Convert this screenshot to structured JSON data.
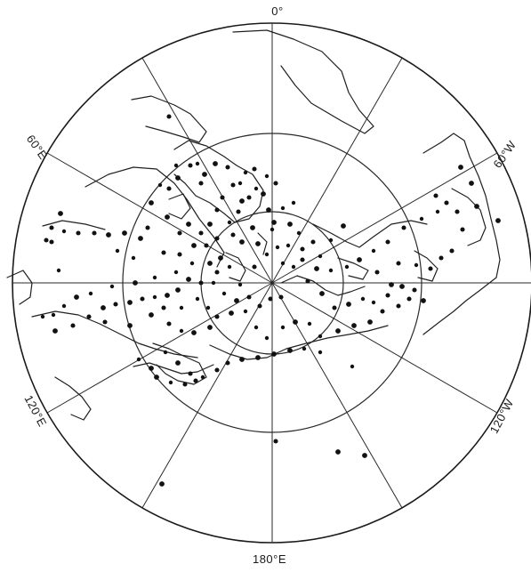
{
  "map": {
    "projection": "north polar stereographic",
    "center": "North Pole",
    "meridian_labels": {
      "lon_0": "0°",
      "lon_60w": "60°W",
      "lon_120w": "120°W",
      "lon_180": "180°E",
      "lon_120e": "120°E",
      "lon_60e": "60°E"
    },
    "meridian_line_interval_deg": 30,
    "latitude_circles": 3,
    "marker": "filled-circle",
    "colors": {
      "background": "#ffffff",
      "ink": "#1a1a1a"
    }
  }
}
